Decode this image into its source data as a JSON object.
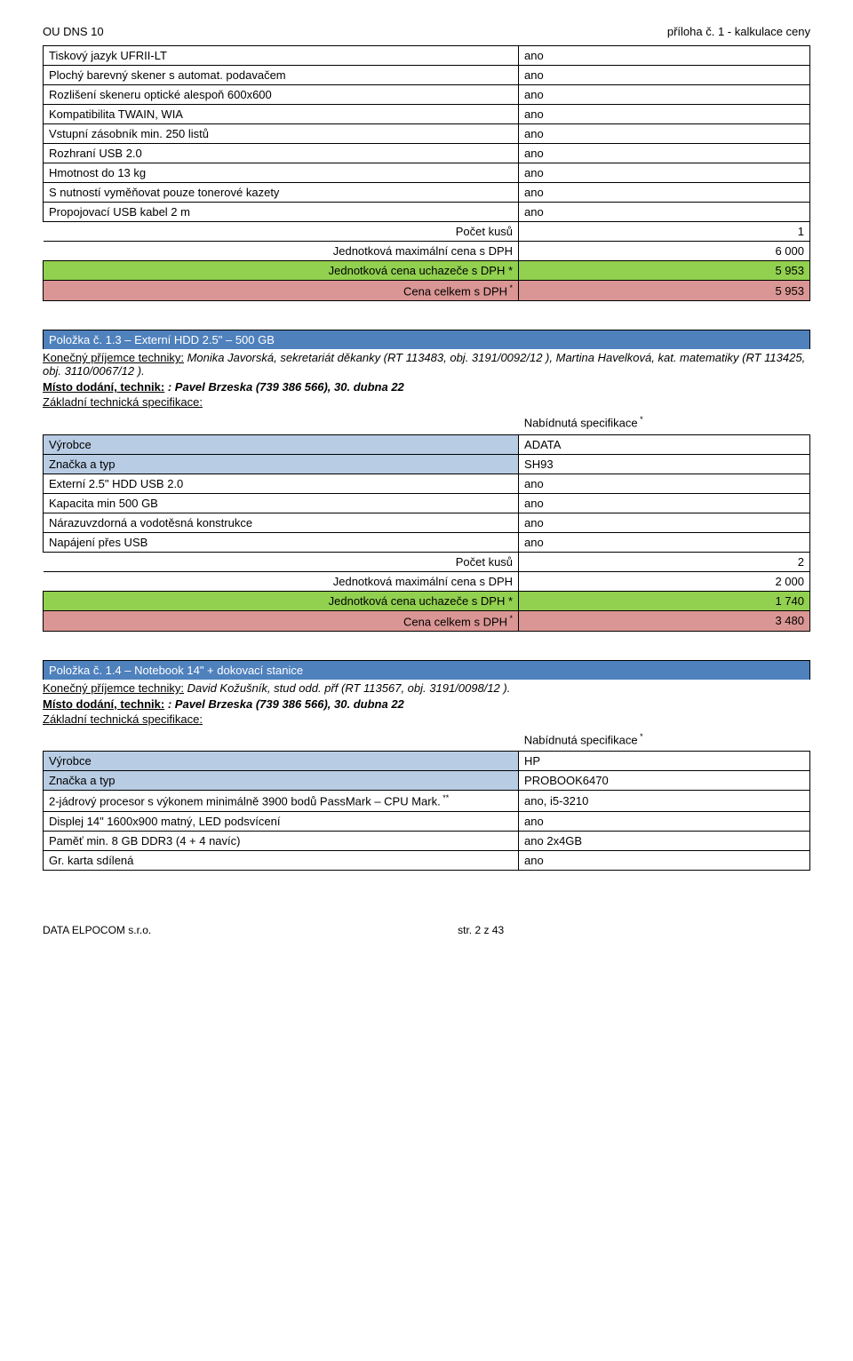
{
  "header": {
    "left": "OU DNS 10",
    "right": "příloha č. 1 - kalkulace ceny"
  },
  "colors": {
    "header_blue": "#4f81bd",
    "cell_blue": "#b8cce4",
    "row_green": "#92d050",
    "row_red": "#da9694",
    "border": "#000000",
    "bg": "#ffffff",
    "text": "#000000"
  },
  "table1": {
    "rows": [
      {
        "label": "Tiskový jazyk UFRII-LT",
        "value": "ano"
      },
      {
        "label": "Plochý barevný skener s automat. podavačem",
        "value": "ano"
      },
      {
        "label": "Rozlišení skeneru optické alespoň 600x600",
        "value": "ano"
      },
      {
        "label": "Kompatibilita TWAIN, WIA",
        "value": "ano"
      },
      {
        "label": "Vstupní zásobník min. 250 listů",
        "value": "ano"
      },
      {
        "label": "Rozhraní USB 2.0",
        "value": "ano"
      },
      {
        "label": "Hmotnost do 13 kg",
        "value": "ano"
      },
      {
        "label": "S nutností vyměňovat pouze tonerové kazety",
        "value": "ano"
      },
      {
        "label": "Propojovací USB kabel  2 m",
        "value": "ano"
      }
    ],
    "count": {
      "label": "Počet kusů",
      "value": "1"
    },
    "max": {
      "label": "Jednotková maximální cena s DPH",
      "value": "6 000"
    },
    "bid": {
      "label": "Jednotková cena uchazeče s DPH *",
      "value": "5 953"
    },
    "total": {
      "label": "Cena celkem s DPH",
      "value": "5 953"
    }
  },
  "section2": {
    "title": "Položka č. 1.3 – Externí HDD 2.5\" – 500 GB",
    "recipient_label": "Konečný příjemce techniky:",
    "recipient": " Monika Javorská, sekretariát děkanky (RT 113483,  obj. 3191/0092/12 ), Martina Havelková, kat. matematiky (RT 113425,  obj. 3110/0067/12 ).",
    "delivery_label": "Místo dodání, technik:",
    "delivery": " : Pavel Brzeska (739 386 566), 30. dubna 22",
    "spec_label": "Základní technická specifikace:",
    "offer_label": "Nabídnutá specifikace",
    "rows_header": [
      {
        "label": "Výrobce",
        "value": "ADATA"
      },
      {
        "label": "Značka a typ",
        "value": "SH93"
      }
    ],
    "rows": [
      {
        "label": "Externí 2.5\" HDD USB 2.0",
        "value": "ano"
      },
      {
        "label": "Kapacita min 500 GB",
        "value": "ano"
      },
      {
        "label": "Nárazuvzdorná a vodotěsná konstrukce",
        "value": "ano"
      },
      {
        "label": "Napájení přes USB",
        "value": "ano"
      }
    ],
    "count": {
      "label": "Počet kusů",
      "value": "2"
    },
    "max": {
      "label": "Jednotková maximální cena s DPH",
      "value": "2 000"
    },
    "bid": {
      "label": "Jednotková cena uchazeče s DPH *",
      "value": "1 740"
    },
    "total": {
      "label": "Cena celkem s DPH",
      "value": "3 480"
    }
  },
  "section3": {
    "title": "Položka č. 1.4 – Notebook 14\" + dokovací stanice",
    "recipient_label": "Konečný příjemce techniky:",
    "recipient": " David Kožušník, stud odd. přf  (RT 113567,  obj. 3191/0098/12 ).",
    "delivery_label": "Místo dodání, technik:",
    "delivery": " : Pavel Brzeska (739 386 566), 30. dubna 22",
    "spec_label": "Základní technická specifikace:",
    "offer_label": "Nabídnutá specifikace",
    "rows_header": [
      {
        "label": "Výrobce",
        "value": "HP"
      },
      {
        "label": "Značka a typ",
        "value": "PROBOOK6470"
      }
    ],
    "rows": [
      {
        "label": "2-jádrový procesor s výkonem minimálně 3900 bodů PassMark – CPU Mark.",
        "value": "ano, i5-3210",
        "sup": "**"
      },
      {
        "label": "Displej 14\"  1600x900  matný, LED podsvícení",
        "value": "ano"
      },
      {
        "label": "Paměť min. 8 GB DDR3 (4 + 4 navíc)",
        "value": "ano 2x4GB"
      },
      {
        "label": "Gr. karta sdílená",
        "value": "ano"
      }
    ]
  },
  "footer": {
    "left": "DATA ELPOCOM s.r.o.",
    "center": "str. 2 z 43"
  }
}
